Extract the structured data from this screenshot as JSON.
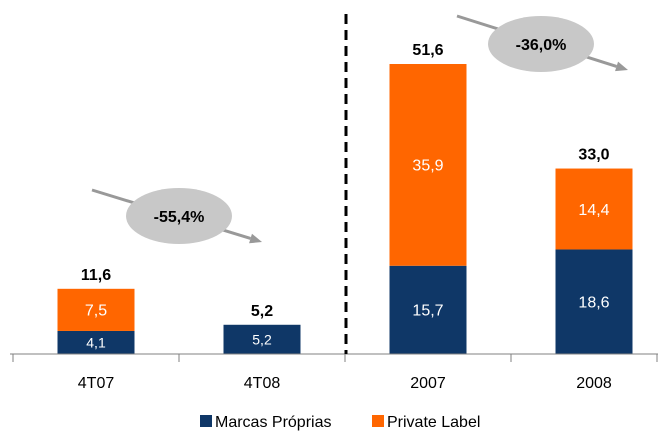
{
  "chart_data": {
    "type": "bar",
    "stacked": true,
    "categories": [
      "4T07",
      "4T08",
      "2007",
      "2008"
    ],
    "series": [
      {
        "name": "Marcas Próprias",
        "values": [
          4.1,
          5.2,
          15.7,
          18.6
        ],
        "labels": [
          "4,1",
          "5,2",
          "15,7",
          "18,6"
        ],
        "color": "#0f3767"
      },
      {
        "name": "Private Label",
        "values": [
          7.5,
          null,
          35.9,
          14.4
        ],
        "labels": [
          "7,5",
          "",
          "35,9",
          "14,4"
        ],
        "color": "#ff6600"
      }
    ],
    "totals": [
      11.6,
      5.2,
      51.6,
      33.0
    ],
    "total_labels": [
      "11,6",
      "5,2",
      "51,6",
      "33,0"
    ],
    "annotations": [
      {
        "text": "-55,4%",
        "between": [
          "4T07",
          "4T08"
        ]
      },
      {
        "text": "-36,0%",
        "between": [
          "2007",
          "2008"
        ]
      }
    ],
    "divider_between": [
      "4T08",
      "2007"
    ],
    "legend_position": "bottom",
    "grid": false,
    "title": "",
    "xlabel": "",
    "ylabel": ""
  }
}
